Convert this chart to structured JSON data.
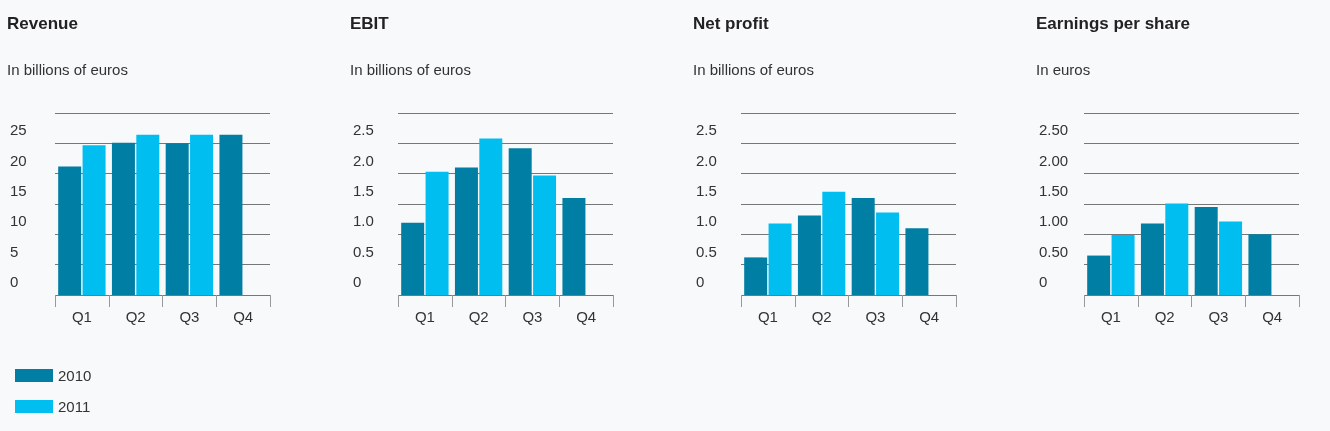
{
  "chart_data": [
    {
      "type": "bar",
      "title": "Revenue",
      "subtitle": "In billions of euros",
      "categories": [
        "Q1",
        "Q2",
        "Q3",
        "Q4"
      ],
      "series": [
        {
          "name": "2010",
          "color": "#007ea3",
          "values": [
            21.2,
            25.1,
            25.0,
            26.4
          ]
        },
        {
          "name": "2011",
          "color": "#00bef0",
          "values": [
            24.7,
            26.4,
            26.4,
            null
          ]
        }
      ],
      "ylim": [
        0,
        30
      ],
      "yticks": [
        0,
        5,
        10,
        15,
        20,
        25,
        {
          "value": 30,
          "label": null
        }
      ],
      "grid": "y",
      "legend": "bottom left"
    },
    {
      "type": "bar",
      "title": "EBIT",
      "subtitle": "In billions of euros",
      "categories": [
        "Q1",
        "Q2",
        "Q3",
        "Q4"
      ],
      "series": [
        {
          "color": "#007ea3",
          "values": [
            1.19,
            2.1,
            2.42,
            1.6
          ]
        },
        {
          "color": "#00bef0",
          "values": [
            2.03,
            2.58,
            1.97,
            null
          ]
        }
      ],
      "ylim": [
        0,
        3
      ],
      "yticks": [
        {
          "value": 0,
          "label": "0"
        },
        0.5,
        {
          "value": 1,
          "label": "1.0"
        },
        1.5,
        {
          "value": 2,
          "label": "2.0"
        },
        2.5,
        {
          "value": 3,
          "label": null
        }
      ],
      "grid": "y"
    },
    {
      "type": "bar",
      "title": "Net profit",
      "subtitle": "In billions of euros",
      "categories": [
        "Q1",
        "Q2",
        "Q3",
        "Q4"
      ],
      "series": [
        {
          "color": "#007ea3",
          "values": [
            0.62,
            1.31,
            1.6,
            1.1
          ]
        },
        {
          "color": "#00bef0",
          "values": [
            1.18,
            1.7,
            1.36,
            null
          ]
        }
      ],
      "ylim": [
        0,
        3
      ],
      "yticks": [
        {
          "value": 0,
          "label": "0"
        },
        0.5,
        {
          "value": 1,
          "label": "1.0"
        },
        1.5,
        {
          "value": 2,
          "label": "2.0"
        },
        2.5,
        {
          "value": 3,
          "label": null
        }
      ],
      "grid": "y"
    },
    {
      "type": "bar",
      "title": "Earnings per share",
      "subtitle": "In euros",
      "categories": [
        "Q1",
        "Q2",
        "Q3",
        "Q4"
      ],
      "series": [
        {
          "color": "#007ea3",
          "values": [
            0.65,
            1.18,
            1.45,
            1.0
          ]
        },
        {
          "color": "#00bef0",
          "values": [
            0.99,
            1.51,
            1.21,
            null
          ]
        }
      ],
      "ylim": [
        0,
        3
      ],
      "yticks": [
        {
          "value": 0,
          "label": "0"
        },
        {
          "value": 0.5,
          "label": "0.50"
        },
        {
          "value": 1,
          "label": "1.00"
        },
        {
          "value": 1.5,
          "label": "1.50"
        },
        {
          "value": 2,
          "label": "2.00"
        },
        {
          "value": 2.5,
          "label": "2.50"
        },
        {
          "value": 3,
          "label": null
        }
      ],
      "grid": "y"
    }
  ]
}
